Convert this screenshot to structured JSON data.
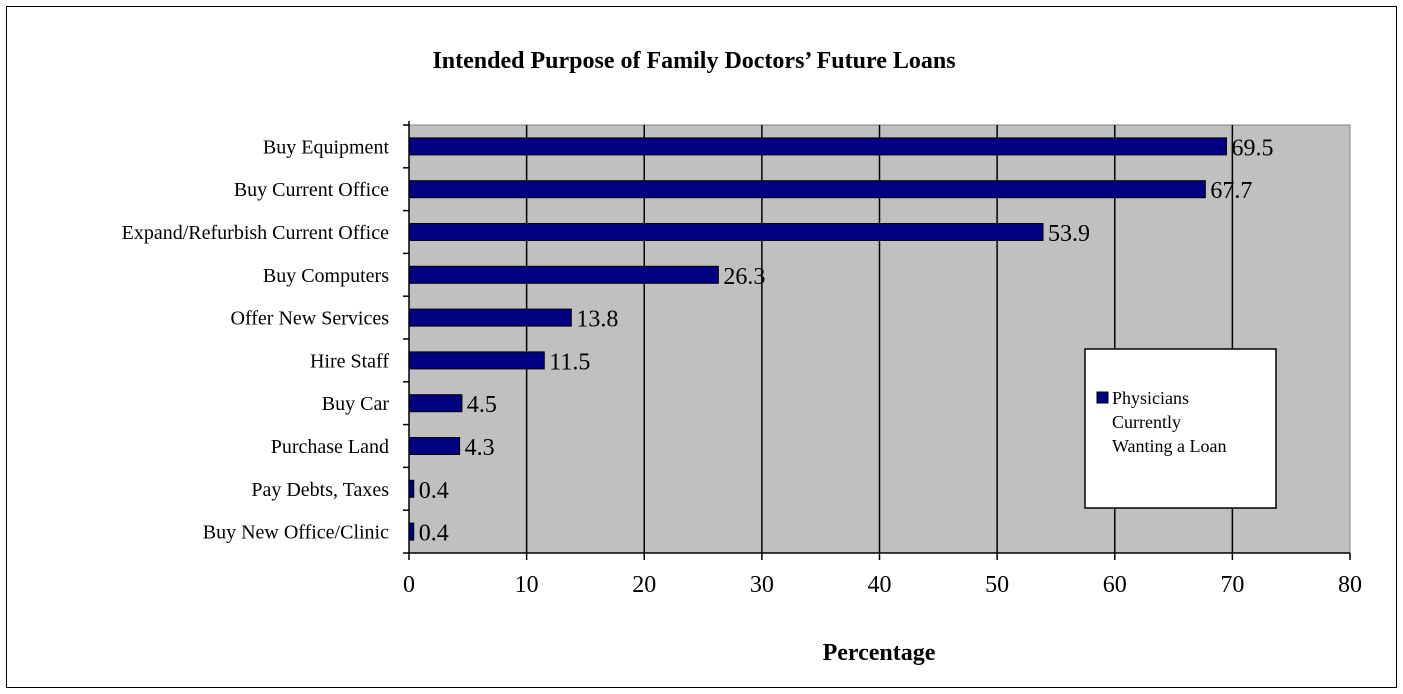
{
  "chart_data": {
    "type": "bar",
    "orientation": "horizontal",
    "title": "Intended Purpose of Family Doctors’ Future Loans",
    "xlabel": "Percentage",
    "ylabel": "",
    "xlim": [
      0,
      80
    ],
    "xticks": [
      0,
      10,
      20,
      30,
      40,
      50,
      60,
      70,
      80
    ],
    "grid": "vertical",
    "legend_position": "right",
    "categories": [
      "Buy Equipment",
      "Buy Current Office",
      "Expand/Refurbish Current Office",
      "Buy Computers",
      "Offer New Services",
      "Hire Staff",
      "Buy Car",
      "Purchase Land",
      "Pay Debts, Taxes",
      "Buy New Office/Clinic"
    ],
    "series": [
      {
        "name": "Physicians Currently Wanting a Loan",
        "legend_lines": [
          "Physicians",
          "Currently",
          "Wanting a Loan"
        ],
        "values": [
          69.5,
          67.7,
          53.9,
          26.3,
          13.8,
          11.5,
          4.5,
          4.3,
          0.4,
          0.4
        ],
        "labels": [
          "69.5",
          "67.7",
          "53.9",
          "26.3",
          "13.8",
          "11.5",
          "4.5",
          "4.3",
          "0.4",
          "0.4"
        ],
        "color": "#000080"
      }
    ],
    "plot_background": "#c0c0c0"
  }
}
